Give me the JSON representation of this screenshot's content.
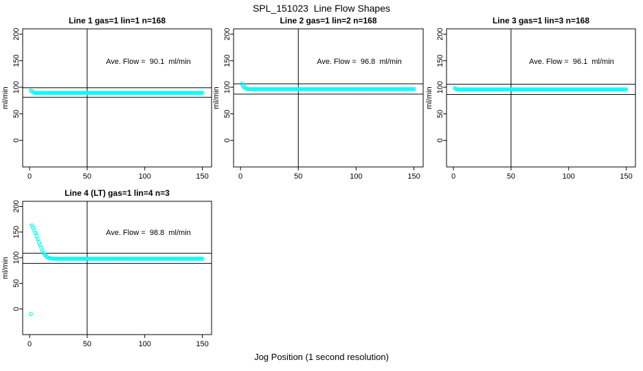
{
  "page": {
    "title": "SPL_151023  Line Flow Shapes",
    "x_axis_label": "Jog Position (1 second resolution)"
  },
  "style": {
    "point_color": "#00FFFF",
    "axis_color": "#000000",
    "background": "#FFFFFF",
    "text_color": "#000000"
  },
  "chart_data": [
    {
      "type": "scatter",
      "title": "Line 1 gas=1 lin=1 n=168",
      "annotation": "Ave. Flow =  90.1  ml/min",
      "ave_flow_ml_min": 90.1,
      "n": 168,
      "ylabel": "ml/min",
      "xlim": [
        -6,
        158
      ],
      "ylim": [
        -50,
        210
      ],
      "xticks": [
        0,
        50,
        100,
        150
      ],
      "yticks": [
        0,
        50,
        100,
        150,
        200
      ],
      "ref_hlines": [
        99.1,
        81.1
      ],
      "ref_vline": 50,
      "series": {
        "name": "flow",
        "marker": "open-circle",
        "transient_xy": [
          [
            1,
            94
          ],
          [
            2,
            92
          ],
          [
            3,
            90.8
          ]
        ],
        "steady": {
          "x_from": 4,
          "x_to": 150,
          "x_step": 1,
          "y": 89.5
        }
      }
    },
    {
      "type": "scatter",
      "title": "Line 2 gas=1 lin=2 n=168",
      "annotation": "Ave. Flow =  96.8  ml/min",
      "ave_flow_ml_min": 96.8,
      "n": 168,
      "ylabel": "ml/min",
      "xlim": [
        -6,
        158
      ],
      "ylim": [
        -50,
        210
      ],
      "xticks": [
        0,
        50,
        100,
        150
      ],
      "yticks": [
        0,
        50,
        100,
        150,
        200
      ],
      "ref_hlines": [
        106.5,
        87.1
      ],
      "ref_vline": 50,
      "series": {
        "name": "flow",
        "marker": "open-circle",
        "transient_xy": [
          [
            1,
            107
          ],
          [
            2,
            103
          ],
          [
            3,
            100
          ],
          [
            4,
            98.5
          ],
          [
            5,
            97.3
          ]
        ],
        "steady": {
          "x_from": 6,
          "x_to": 150,
          "x_step": 1,
          "y": 96.5
        }
      }
    },
    {
      "type": "scatter",
      "title": "Line 3 gas=1 lin=3 n=168",
      "annotation": "Ave. Flow =  96.1  ml/min",
      "ave_flow_ml_min": 96.1,
      "n": 168,
      "ylabel": "ml/min",
      "xlim": [
        -6,
        158
      ],
      "ylim": [
        -50,
        210
      ],
      "xticks": [
        0,
        50,
        100,
        150
      ],
      "yticks": [
        0,
        50,
        100,
        150,
        200
      ],
      "ref_hlines": [
        105.7,
        86.5
      ],
      "ref_vline": 50,
      "series": {
        "name": "flow",
        "marker": "open-circle",
        "transient_xy": [
          [
            1,
            98.5
          ],
          [
            2,
            97
          ]
        ],
        "steady": {
          "x_from": 3,
          "x_to": 150,
          "x_step": 1,
          "y": 96
        }
      }
    },
    {
      "type": "scatter",
      "title": "Line 4 (LT) gas=1 lin=4 n=3",
      "annotation": "Ave. Flow =  98.8  ml/min",
      "ave_flow_ml_min": 98.8,
      "n": 3,
      "ylabel": "ml/min",
      "xlim": [
        -6,
        158
      ],
      "ylim": [
        -50,
        210
      ],
      "xticks": [
        0,
        50,
        100,
        150
      ],
      "yticks": [
        0,
        50,
        100,
        150,
        200
      ],
      "ref_hlines": [
        108.7,
        88.9
      ],
      "ref_vline": 50,
      "series": {
        "name": "flow",
        "marker": "open-circle",
        "transient_xy": [
          [
            1,
            -10
          ],
          [
            2,
            163
          ],
          [
            3,
            158.5
          ],
          [
            4,
            153.5
          ],
          [
            5,
            148
          ],
          [
            6,
            142
          ],
          [
            7,
            136
          ],
          [
            8,
            130
          ],
          [
            9,
            124.5
          ],
          [
            10,
            119
          ],
          [
            11,
            114
          ],
          [
            12,
            109.5
          ],
          [
            13,
            106
          ],
          [
            14,
            103.5
          ],
          [
            15,
            101.5
          ],
          [
            16,
            100.2
          ],
          [
            17,
            99.3
          ],
          [
            18,
            98.7
          ],
          [
            19,
            98.3
          ],
          [
            20,
            98
          ]
        ],
        "steady": {
          "x_from": 21,
          "x_to": 150,
          "x_step": 1,
          "y": 97.8
        }
      }
    }
  ]
}
